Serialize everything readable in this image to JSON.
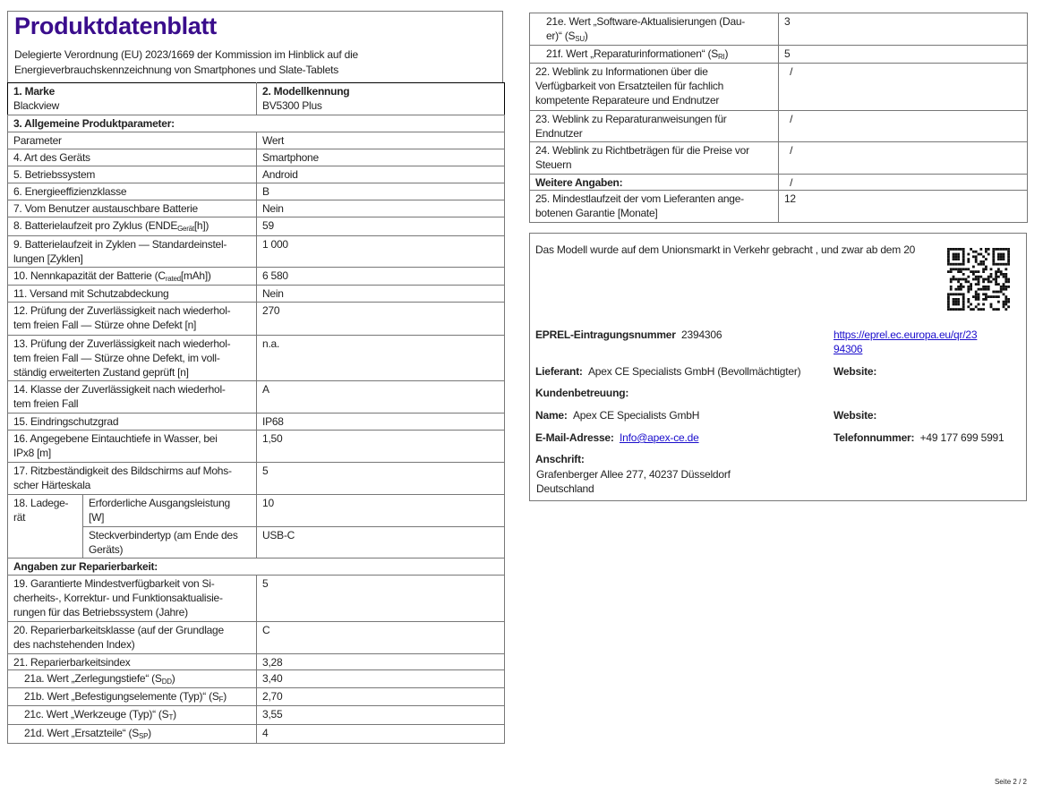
{
  "header": {
    "title": "Produktdatenblatt",
    "subtitle": "Delegierte Verordnung (EU) 2023/1669 der Kommission im Hinblick auf die\nEnergieverbrauchskennzeichnung von Smartphones und Slate-Tablets"
  },
  "brand": {
    "label": "1. Marke",
    "value": "Blackview"
  },
  "model": {
    "label": "2. Modellkennung",
    "value": "BV5300 Plus"
  },
  "left_rows": [
    {
      "type": "section",
      "pre": "3. Allgemeine Produktparameter:"
    },
    {
      "pre": "Parameter",
      "value": "Wert"
    },
    {
      "pre": "4. Art des Geräts",
      "value": "Smartphone"
    },
    {
      "pre": "5. Betriebssystem",
      "value": "Android"
    },
    {
      "pre": "6. Energieeffizienzklasse",
      "value": "B"
    },
    {
      "pre": "7. Vom Benutzer austauschbare Batterie",
      "value": "Nein"
    },
    {
      "pre": "8. Batterielaufzeit pro Zyklus (ENDE",
      "sub": "Gerät",
      "post": "[h])",
      "value": "59"
    },
    {
      "pre": "9. Batterielaufzeit in Zyklen — Standardeinstel-\nlungen [Zyklen]",
      "value": "1 000"
    },
    {
      "pre": "10. Nennkapazität der Batterie (C",
      "sub": "rated",
      "post": "[mAh])",
      "value": "6 580"
    },
    {
      "pre": "11. Versand mit Schutzabdeckung",
      "value": "Nein"
    },
    {
      "pre": "12. Prüfung der Zuverlässigkeit nach wiederhol-\ntem freien Fall — Stürze ohne Defekt [n]",
      "value": "270"
    },
    {
      "pre": "13. Prüfung der Zuverlässigkeit nach wiederhol-\ntem freien Fall — Stürze ohne Defekt, im voll-\nständig erweiterten Zustand geprüft [n]",
      "value": "n.a."
    },
    {
      "pre": "14. Klasse der Zuverlässigkeit nach wiederhol-\ntem freien Fall",
      "value": "A"
    },
    {
      "pre": "15. Eindringschutzgrad",
      "value": "IP68"
    },
    {
      "pre": "16. Angegebene Eintauchtiefe in Wasser, bei\nIPx8 [m]",
      "value": "1,50"
    },
    {
      "pre": "17. Ritzbeständigkeit des Bildschirms auf Mohs-\nscher Härteskala",
      "value": "5"
    }
  ],
  "charger": {
    "label": "18. Ladege-\nrät",
    "rows": [
      {
        "label": "Erforderliche Ausgangsleistung\n[W]",
        "value": "10"
      },
      {
        "label": "Steckverbindertyp (am Ende des\nGeräts)",
        "value": "USB-C"
      }
    ]
  },
  "repair_rows": [
    {
      "type": "section",
      "pre": "Angaben zur Reparierbarkeit:"
    },
    {
      "pre": "19. Garantierte Mindestverfügbarkeit von Si-\ncherheits-, Korrektur- und Funktionsaktualisie-\nrungen für das Betriebssystem (Jahre)",
      "value": "5"
    },
    {
      "pre": "20. Reparierbarkeitsklasse (auf der Grundlage\ndes nachstehenden Index)",
      "value": "C"
    },
    {
      "pre": "21. Reparierbarkeitsindex",
      "value": "3,28"
    },
    {
      "indent": true,
      "pre": "21a. Wert „Zerlegungstiefe“ (S",
      "sub": "DD",
      "post": ")",
      "value": "3,40"
    },
    {
      "indent": true,
      "pre": "21b. Wert „Befestigungselemente (Typ)“ (S",
      "sub": "F",
      "post": ")",
      "value": "2,70"
    },
    {
      "indent": true,
      "pre": "21c. Wert „Werkzeuge (Typ)“ (S",
      "sub": "T",
      "post": ")",
      "value": "3,55"
    },
    {
      "indent": true,
      "pre": "21d. Wert „Ersatzteile“ (S",
      "sub": "SP",
      "post": ")",
      "value": "4"
    }
  ],
  "right_rows": [
    {
      "indent": true,
      "pre": "21e. Wert „Software-Aktualisierungen (Dau-\ner)“ (S",
      "sub": "SU",
      "post": ")",
      "value": "3"
    },
    {
      "indent": true,
      "pre": "21f. Wert „Reparaturinformationen“ (S",
      "sub": "RI",
      "post": ")",
      "value": "5"
    },
    {
      "pre": "22. Weblink zu Informationen über die\nVerfügbarkeit von Ersatzteilen für fachlich\nkompetente Reparateure und Endnutzer",
      "value": "  /"
    },
    {
      "pre": "23. Weblink zu Reparaturanweisungen für\nEndnutzer",
      "value": "  /"
    },
    {
      "pre": "24. Weblink zu Richtbeträgen für die Preise vor\nSteuern",
      "value": "  /"
    },
    {
      "bold": true,
      "pre": "Weitere Angaben:",
      "value": "  /"
    },
    {
      "pre": "25. Mindestlaufzeit der vom Lieferanten ange-\nbotenen Garantie [Monate]",
      "value": "12"
    }
  ],
  "info": {
    "market_text": "Das Modell wurde auf dem Unionsmarkt in Verkehr gebracht , und zwar ab dem 20",
    "eprel_label": "EPREL-Eintragungsnummer",
    "eprel_value": "2394306",
    "eprel_link": "https://eprel.ec.europa.eu/qr/23\n94306",
    "supplier_label": "Lieferant:",
    "supplier_value": "Apex CE Specialists GmbH (Bevollmächtigter)",
    "website_label": "Website:",
    "support_label": "Kundenbetreuung:",
    "name_label": "Name:",
    "name_value": "Apex CE Specialists GmbH",
    "website2_label": "Website:",
    "email_label": "E-Mail-Adresse:",
    "email_value": "Info@apex-ce.de",
    "phone_label": "Telefonnummer:",
    "phone_value": "+49 177 699 5991",
    "address_label": "Anschrift:",
    "address_value": "Grafenberger Allee 277, 40237 Düsseldorf\nDeutschland"
  },
  "footer": {
    "page": "Seite 2 / 2"
  }
}
